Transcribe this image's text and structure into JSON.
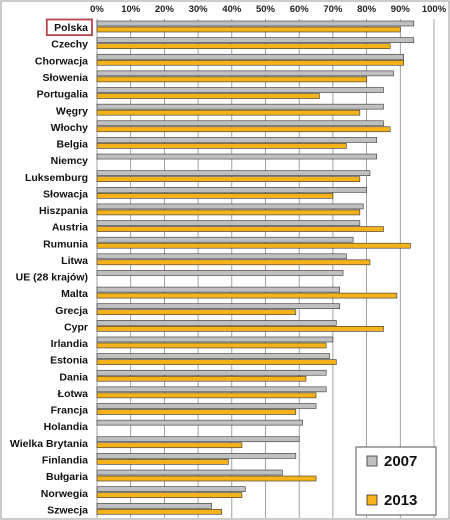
{
  "chart_data": {
    "type": "bar",
    "orientation": "horizontal",
    "xlim": [
      0,
      100
    ],
    "x_ticks": [
      "0%",
      "10%",
      "20%",
      "30%",
      "40%",
      "50%",
      "60%",
      "70%",
      "80%",
      "90%",
      "100%"
    ],
    "grid": true,
    "legend_position": "bottom-right",
    "highlighted_category": "Polska",
    "categories": [
      "Polska",
      "Czechy",
      "Chorwacja",
      "Słowenia",
      "Portugalia",
      "Węgry",
      "Włochy",
      "Belgia",
      "Niemcy",
      "Luksemburg",
      "Słowacja",
      "Hiszpania",
      "Austria",
      "Rumunia",
      "Litwa",
      "UE (28 krajów)",
      "Malta",
      "Grecja",
      "Cypr",
      "Irlandia",
      "Estonia",
      "Dania",
      "Łotwa",
      "Francja",
      "Holandia",
      "Wielka Brytania",
      "Finlandia",
      "Bułgaria",
      "Norwegia",
      "Szwecja"
    ],
    "series": [
      {
        "name": "2007",
        "color": "#c0c0c0",
        "values": [
          94,
          94,
          91,
          88,
          85,
          85,
          85,
          83,
          83,
          81,
          80,
          79,
          78,
          76,
          74,
          73,
          72,
          72,
          71,
          70,
          69,
          68,
          68,
          65,
          61,
          60,
          59,
          55,
          44,
          34
        ]
      },
      {
        "name": "2013",
        "color": "#f5b21b",
        "values": [
          90,
          87,
          91,
          80,
          66,
          78,
          87,
          74,
          0,
          78,
          70,
          78,
          85,
          93,
          81,
          0,
          89,
          59,
          85,
          68,
          71,
          62,
          65,
          59,
          0,
          43,
          39,
          65,
          43,
          37
        ]
      }
    ]
  }
}
